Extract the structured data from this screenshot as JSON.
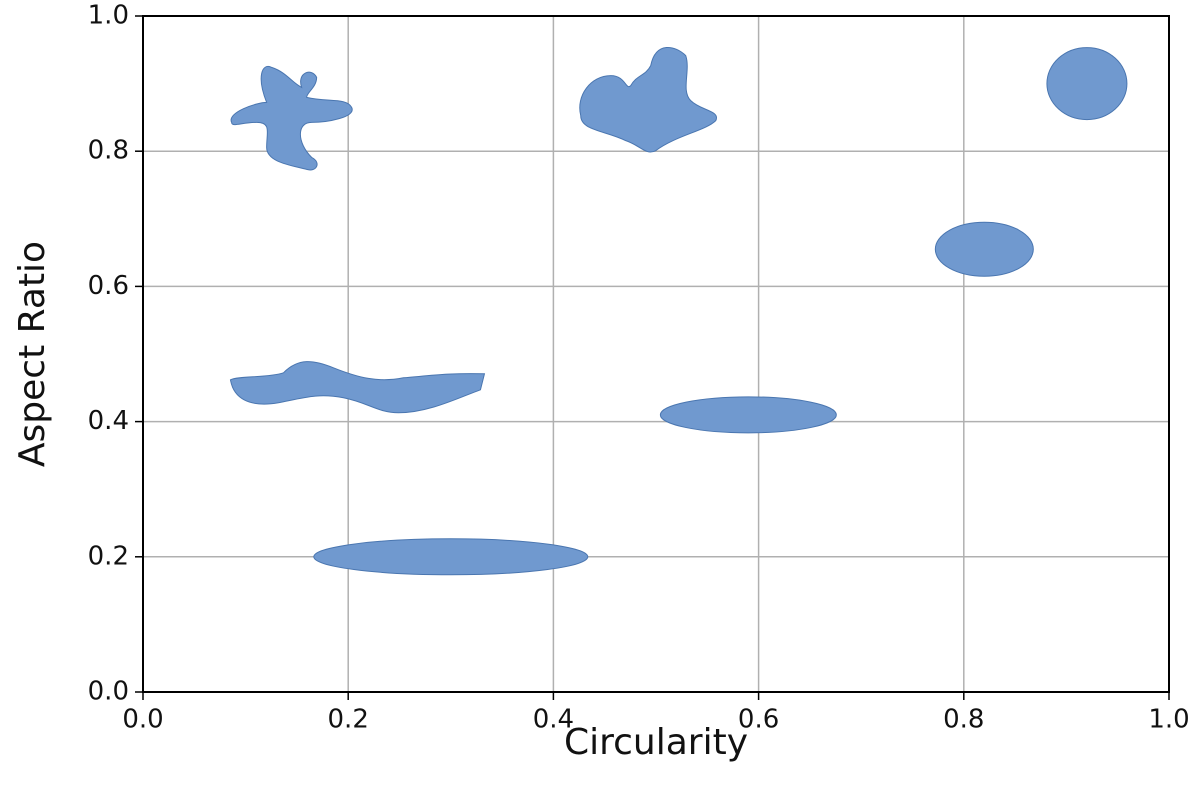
{
  "chart_data": {
    "type": "scatter",
    "x_label": "Circularity",
    "y_label": "Aspect Ratio",
    "x": [
      0.14,
      0.49,
      0.92,
      0.82,
      0.21,
      0.59,
      0.3
    ],
    "values": [
      0.85,
      0.86,
      0.9,
      0.655,
      0.45,
      0.41,
      0.2
    ],
    "color": "#7099cf",
    "xlim": [
      0,
      1
    ],
    "ylim": [
      0,
      1
    ],
    "xticks": [
      {
        "value": 0,
        "label": "0.0"
      },
      0.2,
      0.4,
      0.6,
      0.8,
      {
        "value": 1,
        "label": "1.0"
      }
    ],
    "yticks": [
      {
        "value": 0,
        "label": "0.0"
      },
      0.2,
      0.4,
      0.6,
      0.8,
      {
        "value": 1,
        "label": "1.0"
      }
    ],
    "grid": true
  }
}
